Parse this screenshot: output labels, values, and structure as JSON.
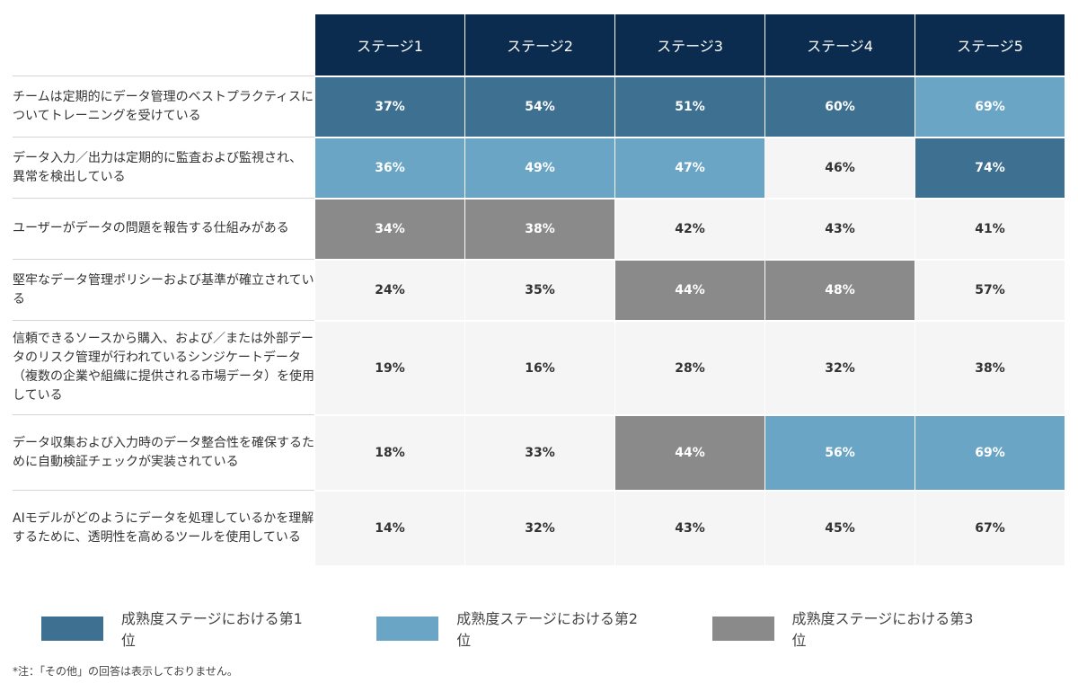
{
  "chart_data": {
    "type": "heatmap",
    "title": "",
    "columns": [
      "ステージ1",
      "ステージ2",
      "ステージ3",
      "ステージ4",
      "ステージ5"
    ],
    "rows": [
      {
        "label": "チームは定期的にデータ管理のベストプラクティスについてトレーニングを受けている",
        "values": [
          37,
          54,
          51,
          60,
          69
        ],
        "ranks": [
          1,
          1,
          1,
          1,
          2
        ]
      },
      {
        "label": "データ入力／出力は定期的に監査および監視され、異常を検出している",
        "values": [
          36,
          49,
          47,
          46,
          74
        ],
        "ranks": [
          2,
          2,
          2,
          0,
          1
        ]
      },
      {
        "label": "ユーザーがデータの問題を報告する仕組みがある",
        "values": [
          34,
          38,
          42,
          43,
          41
        ],
        "ranks": [
          3,
          3,
          0,
          0,
          0
        ]
      },
      {
        "label": "堅牢なデータ管理ポリシーおよび基準が確立されている",
        "values": [
          24,
          35,
          44,
          48,
          57
        ],
        "ranks": [
          0,
          0,
          3,
          3,
          0
        ]
      },
      {
        "label": "信頼できるソースから購入、および／または外部データのリスク管理が行われているシンジケートデータ（複数の企業や組織に提供される市場データ）を使用している",
        "values": [
          19,
          16,
          28,
          32,
          38
        ],
        "ranks": [
          0,
          0,
          0,
          0,
          0
        ]
      },
      {
        "label": "データ収集および入力時のデータ整合性を確保するために自動検証チェックが実装されている",
        "values": [
          18,
          33,
          44,
          56,
          69
        ],
        "ranks": [
          0,
          0,
          3,
          2,
          2
        ]
      },
      {
        "label": "AIモデルがどのようにデータを処理しているかを理解するために、透明性を高めるツールを使用している",
        "values": [
          14,
          32,
          43,
          45,
          67
        ],
        "ranks": [
          0,
          0,
          0,
          0,
          0
        ]
      }
    ],
    "value_suffix": "%",
    "legend": [
      {
        "rank": 1,
        "label": "成熟度ステージにおける第1位",
        "color": "#3d7091"
      },
      {
        "rank": 2,
        "label": "成熟度ステージにおける第2位",
        "color": "#6aa5c5"
      },
      {
        "rank": 3,
        "label": "成熟度ステージにおける第3位",
        "color": "#8a8a8a"
      }
    ],
    "default_cell_color": "#f5f5f5",
    "rank_text_color": "#ffffff",
    "default_text_color": "#333333",
    "header_color": "#0b2c4f"
  },
  "footnote": "*注：「その他」の回答は表示しておりません。"
}
